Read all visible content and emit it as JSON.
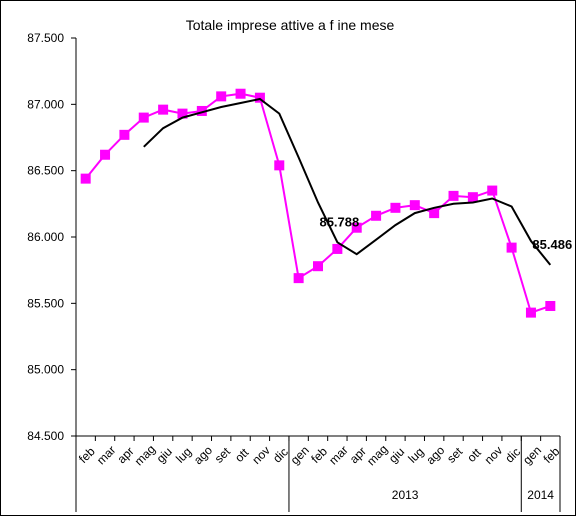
{
  "chart_data": {
    "type": "line",
    "title": "Totale imprese attive a f ine mese",
    "xlabel": "",
    "ylabel": "",
    "ylim": [
      84500,
      87500
    ],
    "yticks": [
      84500,
      85000,
      85500,
      86000,
      86500,
      87000,
      87500
    ],
    "ytick_labels": [
      "84.500",
      "85.000",
      "85.500",
      "86.000",
      "86.500",
      "87.000",
      "87.500"
    ],
    "categories": [
      "feb",
      "mar",
      "apr",
      "mag",
      "giu",
      "lug",
      "ago",
      "set",
      "ott",
      "nov",
      "dic",
      "gen",
      "feb",
      "mar",
      "apr",
      "mag",
      "giu",
      "lug",
      "ago",
      "set",
      "ott",
      "nov",
      "dic",
      "gen",
      "feb"
    ],
    "year_groups": [
      {
        "label": "",
        "start": 0,
        "end": 10
      },
      {
        "label": "2013",
        "start": 11,
        "end": 22
      },
      {
        "label": "2014",
        "start": 23,
        "end": 24
      }
    ],
    "series": [
      {
        "color": "#ff00ff",
        "marker": "square",
        "values": [
          86440,
          86620,
          86770,
          86900,
          86960,
          86930,
          86950,
          87060,
          87080,
          87050,
          86540,
          85690,
          85780,
          85910,
          86070,
          86160,
          86220,
          86240,
          86180,
          86310,
          86300,
          86350,
          85920,
          85430,
          85480
        ]
      },
      {
        "color": "#000000",
        "marker": "none",
        "values": [
          null,
          null,
          null,
          86680,
          86820,
          86900,
          86940,
          86980,
          87010,
          87040,
          86930,
          86600,
          86260,
          85960,
          85870,
          85980,
          86090,
          86180,
          86220,
          86250,
          86260,
          86290,
          86230,
          85970,
          85790
        ]
      }
    ],
    "annotations": [
      {
        "text": "85.788",
        "index": 13
      },
      {
        "text": "85.486",
        "index": 24
      }
    ],
    "grid": false,
    "legend": "none"
  }
}
